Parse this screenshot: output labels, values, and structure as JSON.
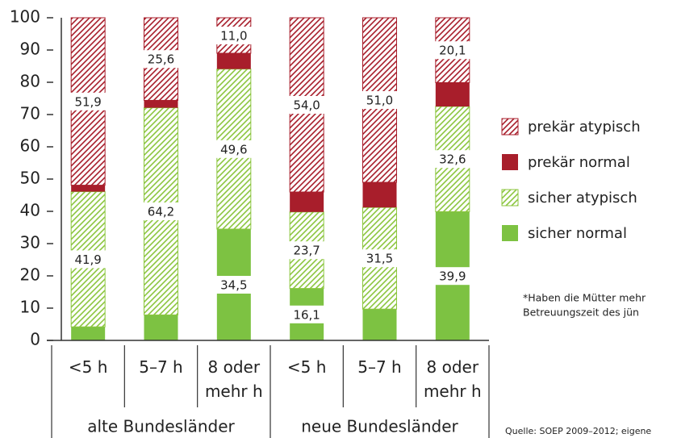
{
  "chart_data": {
    "type": "stacked_bar",
    "categories": [
      "<5 h",
      "5–7 h",
      "8 oder mehr h",
      "<5 h",
      "5–7 h",
      "8 oder mehr h"
    ],
    "groups": [
      "alte Bundesländer",
      "neue Bundesländer"
    ],
    "series": [
      {
        "name": "sicher normal",
        "color": "#7dc242",
        "hatched": false,
        "values": [
          4.2,
          7.9,
          34.5,
          16.1,
          9.7,
          39.9
        ],
        "value_labels": [
          null,
          null,
          "34,5",
          "16,1",
          null,
          "39,9"
        ]
      },
      {
        "name": "sicher atypisch",
        "color": "#8cc63f",
        "hatched": true,
        "values": [
          41.9,
          64.2,
          49.6,
          23.7,
          31.5,
          32.6
        ],
        "value_labels": [
          "41,9",
          "64,2",
          "49,6",
          "23,7",
          "31,5",
          "32,6"
        ]
      },
      {
        "name": "prekär normal",
        "color": "#a81e2b",
        "hatched": false,
        "values": [
          2.0,
          2.3,
          4.9,
          6.2,
          7.8,
          7.4
        ],
        "value_labels": [
          null,
          null,
          null,
          null,
          null,
          null
        ]
      },
      {
        "name": "prekär atypisch",
        "color": "#a81e2b",
        "hatched": true,
        "values": [
          51.9,
          25.6,
          11.0,
          54.0,
          51.0,
          20.1
        ],
        "value_labels": [
          "51,9",
          "25,6",
          "11,0",
          "54,0",
          "51,0",
          "20,1"
        ]
      }
    ],
    "ylim": [
      0,
      100
    ],
    "yticks": [
      0,
      10,
      20,
      30,
      40,
      50,
      60,
      70,
      80,
      90,
      100
    ],
    "legend": "right",
    "footnote": [
      "*Haben die Mütter mehr",
      "Betreuungszeit des jün"
    ],
    "source": "Quelle: SOEP 2009–2012; eigene"
  }
}
